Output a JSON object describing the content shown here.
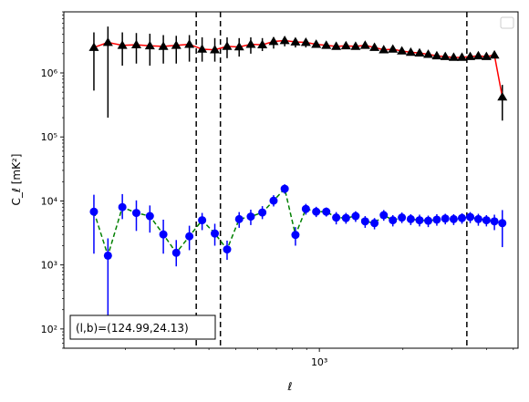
{
  "chart_data": {
    "type": "scatter",
    "xscale": "log",
    "yscale": "log",
    "xlim": [
      120,
      5200
    ],
    "ylim": [
      50,
      9000000
    ],
    "xlabel": "ℓ",
    "ylabel": "C_ℓ [mK²]",
    "x_ticks": [
      {
        "value": 1000,
        "label": "10³"
      }
    ],
    "y_ticks": [
      {
        "value": 100,
        "label": "10²"
      },
      {
        "value": 1000,
        "label": "10³"
      },
      {
        "value": 10000,
        "label": "10⁴"
      },
      {
        "value": 100000,
        "label": "10⁵"
      },
      {
        "value": 1000000,
        "label": "10⁶"
      }
    ],
    "grid": false,
    "legend": {
      "position": "top-right",
      "entries": []
    },
    "annotation": "(l,b)=(124.99,24.13)",
    "vlines": [
      360,
      440,
      3400
    ],
    "series": [
      {
        "marker": "triangle",
        "color": "#000000",
        "line_color": "#ff0000",
        "line_style": "solid",
        "x": [
          154,
          173,
          195,
          219,
          245,
          274,
          305,
          340,
          378,
          420,
          465,
          514,
          566,
          623,
          684,
          750,
          820,
          894,
          974,
          1059,
          1150,
          1247,
          1351,
          1462,
          1580,
          1706,
          1840,
          1983,
          2135,
          2296,
          2468,
          2650,
          2843,
          3048,
          3265,
          3496,
          3740,
          4000,
          4274,
          4564
        ],
        "y": [
          2500000,
          3000000,
          2700000,
          2750000,
          2650000,
          2600000,
          2700000,
          2800000,
          2350000,
          2300000,
          2600000,
          2550000,
          2800000,
          2750000,
          3100000,
          3200000,
          3050000,
          3000000,
          2800000,
          2700000,
          2600000,
          2650000,
          2600000,
          2700000,
          2500000,
          2300000,
          2350000,
          2200000,
          2100000,
          2050000,
          1950000,
          1850000,
          1800000,
          1750000,
          1750000,
          1800000,
          1850000,
          1800000,
          1900000,
          420000
        ],
        "yerr_low": [
          530000,
          200000,
          1300000,
          1400000,
          1300000,
          1400000,
          1400000,
          1500000,
          1500000,
          1500000,
          1700000,
          1800000,
          2000000,
          2200000,
          2400000,
          2600000,
          2500000,
          2500000,
          2500000,
          2400000,
          2400000,
          2500000,
          2400000,
          2500000,
          2400000,
          2200000,
          2200000,
          2100000,
          2000000,
          2000000,
          1900000,
          1800000,
          1750000,
          1700000,
          1700000,
          1750000,
          1800000,
          1750000,
          1850000,
          180000
        ],
        "yerr_high": [
          4300000,
          5300000,
          4300000,
          4200000,
          4100000,
          3900000,
          3800000,
          3900000,
          3600000,
          3500000,
          3600000,
          3500000,
          3600000,
          3500000,
          3600000,
          3700000,
          3500000,
          3400000,
          3200000,
          3100000,
          3000000,
          3000000,
          2900000,
          3000000,
          2800000,
          2500000,
          2500000,
          2400000,
          2300000,
          2200000,
          2100000,
          2000000,
          1950000,
          1900000,
          1900000,
          1900000,
          1900000,
          1850000,
          2000000,
          650000
        ]
      },
      {
        "marker": "circle",
        "color": "#0000ff",
        "line_color": "#008000",
        "line_style": "dashed",
        "x": [
          154,
          173,
          195,
          219,
          245,
          274,
          305,
          340,
          378,
          420,
          465,
          514,
          566,
          623,
          684,
          750,
          820,
          894,
          974,
          1059,
          1150,
          1247,
          1351,
          1462,
          1580,
          1706,
          1840,
          1983,
          2135,
          2296,
          2468,
          2650,
          2843,
          3048,
          3265,
          3496,
          3740,
          4000,
          4274,
          4564
        ],
        "y": [
          6800,
          1400,
          8000,
          6500,
          5800,
          3000,
          1550,
          2800,
          5000,
          3100,
          1750,
          5200,
          5700,
          6600,
          10100,
          15500,
          2950,
          7500,
          6800,
          6800,
          5500,
          5400,
          5800,
          4800,
          4500,
          6000,
          5000,
          5500,
          5200,
          5000,
          4900,
          5100,
          5300,
          5200,
          5400,
          5600,
          5200,
          5000,
          4800,
          4500
        ],
        "yerr_low": [
          1500,
          150,
          5200,
          3400,
          3200,
          1500,
          950,
          1700,
          3500,
          2000,
          1200,
          3800,
          4200,
          5200,
          8200,
          13000,
          2000,
          6100,
          5600,
          5700,
          4300,
          4400,
          4700,
          3800,
          3600,
          4900,
          4000,
          4500,
          4200,
          4000,
          3900,
          4100,
          4300,
          4200,
          4400,
          4500,
          4100,
          4000,
          3500,
          1900
        ],
        "yerr_high": [
          12500,
          2600,
          12800,
          10200,
          8500,
          5100,
          2450,
          4100,
          6500,
          4400,
          2400,
          6700,
          7300,
          8300,
          12300,
          18200,
          3900,
          9000,
          8100,
          7900,
          6700,
          6500,
          6900,
          5800,
          5400,
          7200,
          6000,
          6600,
          6200,
          6100,
          5900,
          6200,
          6300,
          6200,
          6400,
          6700,
          6300,
          6000,
          6100,
          7200
        ]
      }
    ]
  }
}
